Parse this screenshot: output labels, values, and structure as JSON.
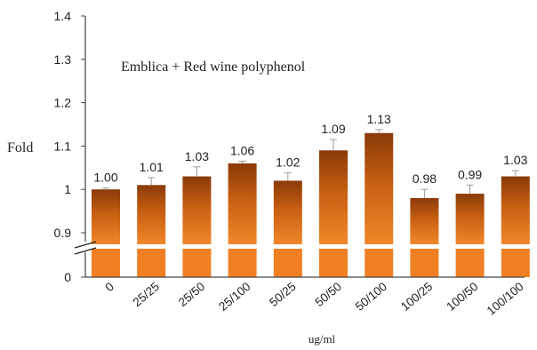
{
  "chart_data": {
    "type": "bar",
    "annotation": "Emblica + Red wine polyphenol",
    "ylabel": "Fold",
    "xlabel": "ug/ml",
    "categories": [
      "0",
      "25/25",
      "25/50",
      "25/100",
      "50/25",
      "50/50",
      "50/100",
      "100/25",
      "100/50",
      "100/100"
    ],
    "values": [
      1.0,
      1.01,
      1.03,
      1.06,
      1.02,
      1.09,
      1.13,
      0.98,
      0.99,
      1.03
    ],
    "value_labels": [
      "1.00",
      "1.01",
      "1.03",
      "1.06",
      "1.02",
      "1.09",
      "1.13",
      "0.98",
      "0.99",
      "1.03"
    ],
    "error": [
      0.003,
      0.017,
      0.022,
      0.005,
      0.018,
      0.025,
      0.008,
      0.02,
      0.02,
      0.013
    ],
    "ylim": [
      0.9,
      1.4
    ],
    "yticks": [
      "1.4",
      "1.3",
      "1.2",
      "1.1",
      "1",
      "0.9"
    ],
    "ytick_values": [
      1.4,
      1.3,
      1.2,
      1.1,
      1.0,
      0.9
    ],
    "y_zero_label": "0",
    "axis_break": true,
    "grid": false,
    "colors": {
      "bar_top": "#8a3a08",
      "bar_mid": "#c85f12",
      "bar_bottom": "#f1872a",
      "base": "#f07f24"
    }
  }
}
